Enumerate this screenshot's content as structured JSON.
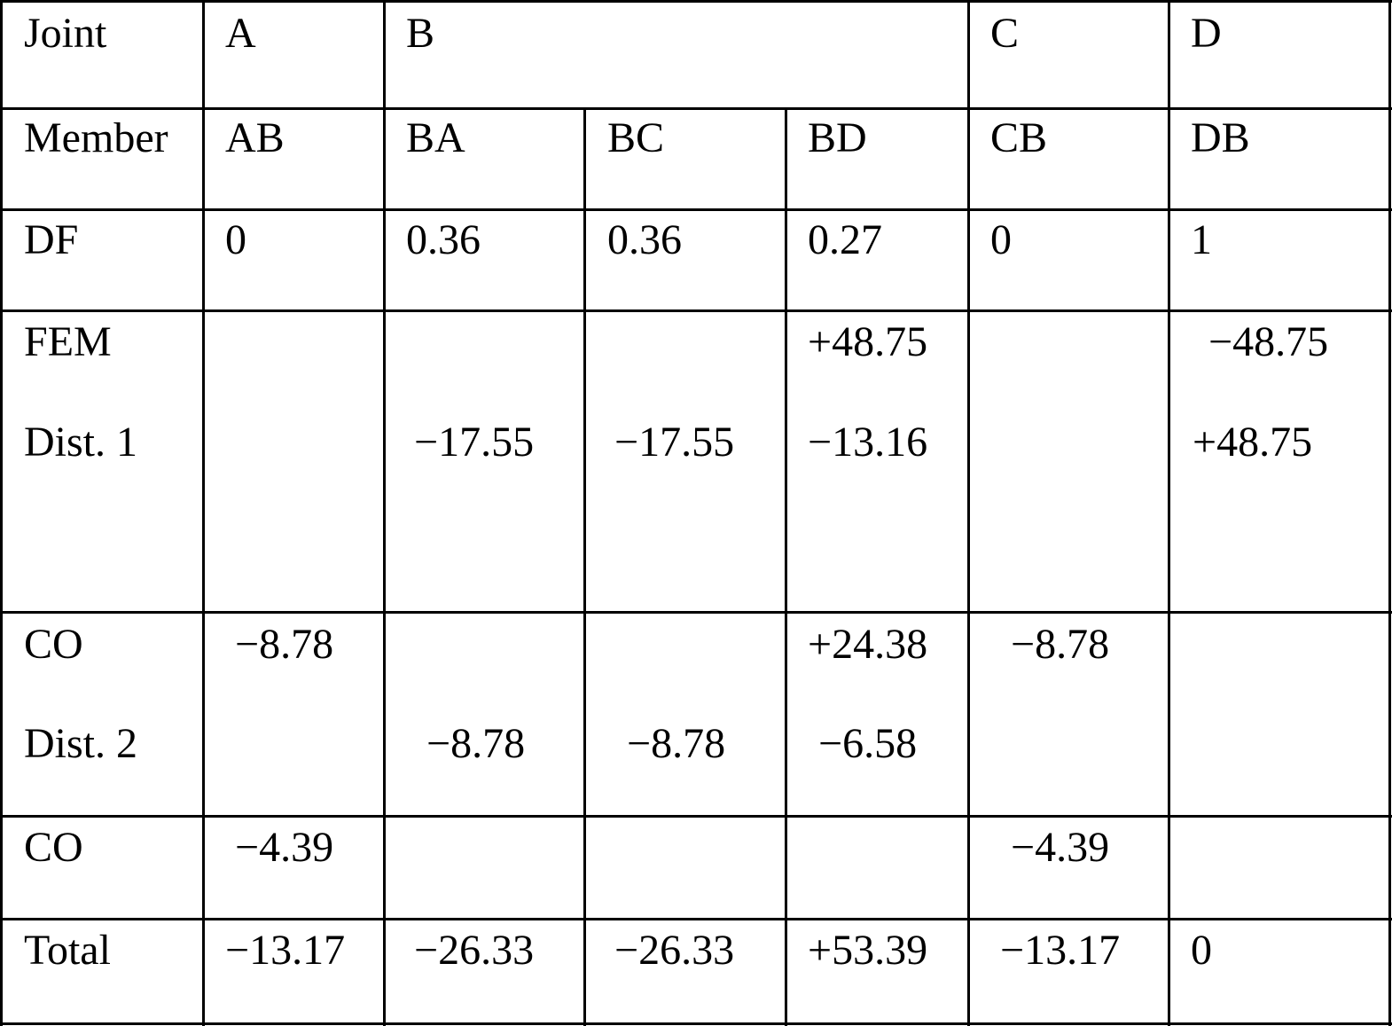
{
  "table": {
    "headers": {
      "joint_label": "Joint",
      "joints": [
        "A",
        "B",
        "C",
        "D"
      ],
      "member_label": "Member",
      "members": [
        "AB",
        "BA",
        "BC",
        "BD",
        "CB",
        "DB"
      ],
      "df_label": "DF",
      "df": [
        "0",
        "0.36",
        "0.36",
        "0.27",
        "0",
        "1"
      ]
    },
    "fem": {
      "label": "FEM",
      "bd": "+48.75",
      "db": "−48.75"
    },
    "dist1": {
      "label": "Dist. 1",
      "ba": "−17.55",
      "bc": "−17.55",
      "bd": "−13.16",
      "db": "+48.75"
    },
    "co1": {
      "label": "CO",
      "ab": "−8.78",
      "bd": "+24.38",
      "cb": "−8.78"
    },
    "dist2": {
      "label": "Dist. 2",
      "ba": "−8.78",
      "bc": "−8.78",
      "bd": "−6.58"
    },
    "co2": {
      "label": "CO",
      "ab": "−4.39",
      "cb": "−4.39"
    },
    "total": {
      "label": "Total",
      "values": [
        "−13.17",
        "−26.33",
        "−26.33",
        "+53.39",
        "−13.17",
        "0"
      ]
    }
  }
}
